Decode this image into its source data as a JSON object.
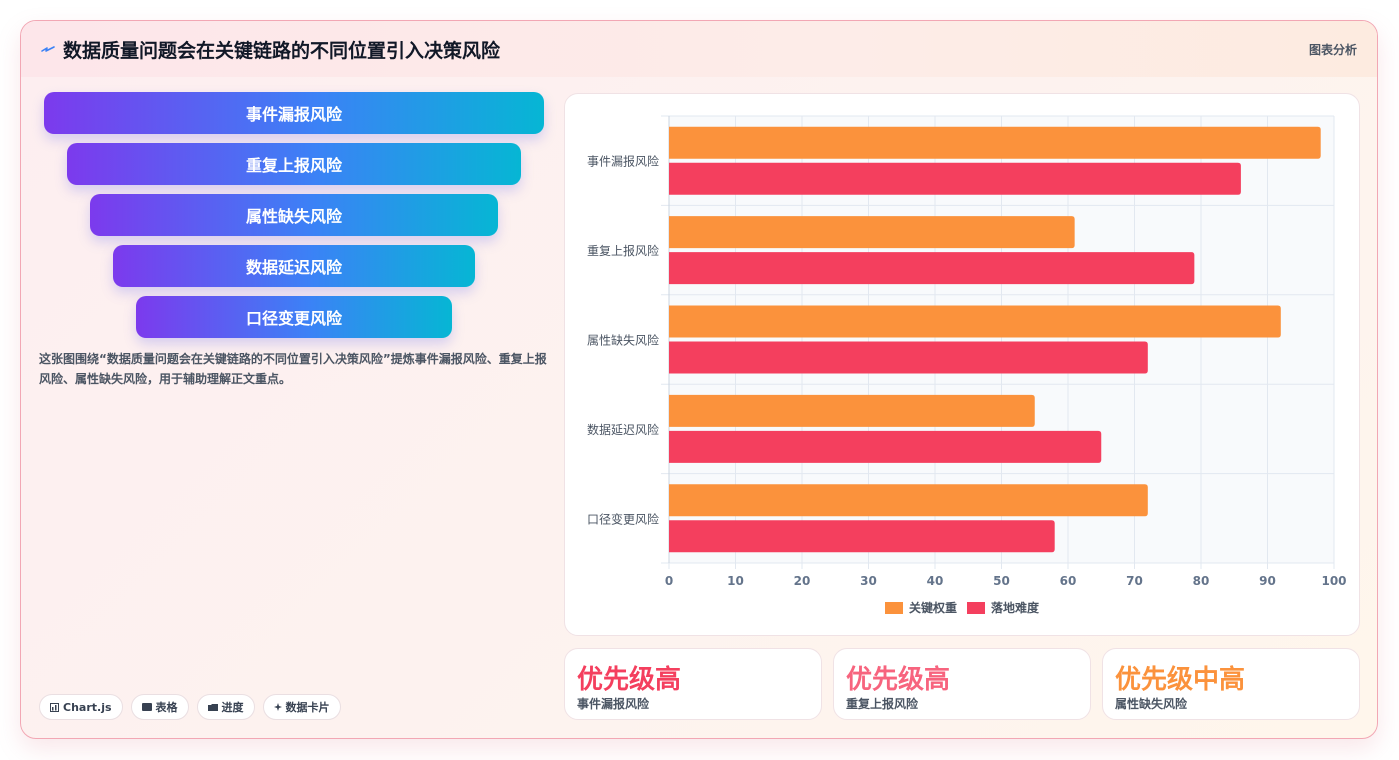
{
  "header": {
    "title": "数据质量问题会在关键链路的不同位置引入决策风险",
    "tag": "图表分析",
    "icon": "spark-icon",
    "accent": "#3b82f6"
  },
  "funnel": {
    "items": [
      "事件漏报风险",
      "重复上报风险",
      "属性缺失风险",
      "数据延迟风险",
      "口径变更风险"
    ],
    "gradient": [
      "#7c3aed",
      "#3b82f6",
      "#06b6d4"
    ]
  },
  "description": "这张图围绕“数据质量问题会在关键链路的不同位置引入决策风险”提炼事件漏报风险、重复上报风险、属性缺失风险，用于辅助理解正文重点。",
  "chips": [
    {
      "icon": "chart-icon",
      "label": "Chart.js"
    },
    {
      "icon": "table-icon",
      "label": "表格"
    },
    {
      "icon": "progress-icon",
      "label": "进度"
    },
    {
      "icon": "sparkle-icon",
      "label": "数据卡片"
    }
  ],
  "chart_data": {
    "type": "bar",
    "orientation": "horizontal",
    "categories": [
      "事件漏报风险",
      "重复上报风险",
      "属性缺失风险",
      "数据延迟风险",
      "口径变更风险"
    ],
    "series": [
      {
        "name": "关键权重",
        "values": [
          98,
          61,
          92,
          55,
          72
        ],
        "color": "#fb923c"
      },
      {
        "name": "落地难度",
        "values": [
          86,
          79,
          72,
          65,
          58
        ],
        "color": "#f43f5e"
      }
    ],
    "xlim": [
      0,
      100
    ],
    "xticks": [
      0,
      10,
      20,
      30,
      40,
      50,
      60,
      70,
      80,
      90,
      100
    ],
    "grid": true,
    "legend": "bottom"
  },
  "kpis": [
    {
      "value": "优先级高",
      "label": "事件漏报风险",
      "color": "#f43f5e"
    },
    {
      "value": "优先级高",
      "label": "重复上报风险",
      "color": "#f7647e"
    },
    {
      "value": "优先级中高",
      "label": "属性缺失风险",
      "color": "#fb923c"
    }
  ]
}
